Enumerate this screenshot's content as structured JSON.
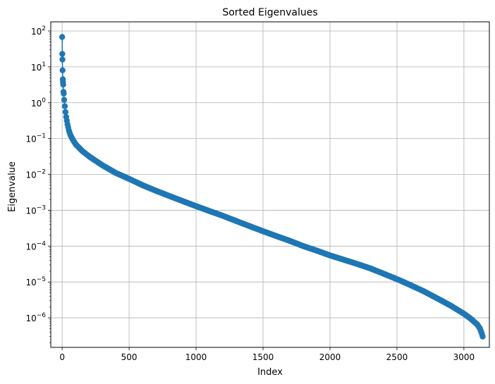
{
  "chart_data": {
    "type": "scatter",
    "title": "Sorted Eigenvalues",
    "xlabel": "Index",
    "ylabel": "Eigenvalue",
    "xlim": [
      -85,
      3190
    ],
    "ylim": [
      1.5e-07,
      180
    ],
    "yscale": "log",
    "grid": true,
    "xticks": [
      0,
      500,
      1000,
      1500,
      2000,
      2500,
      3000
    ],
    "yticks": [
      {
        "value": 1e-06,
        "base": "10",
        "exp": "−6"
      },
      {
        "value": 1e-05,
        "base": "10",
        "exp": "−5"
      },
      {
        "value": 0.0001,
        "base": "10",
        "exp": "−4"
      },
      {
        "value": 0.001,
        "base": "10",
        "exp": "−3"
      },
      {
        "value": 0.01,
        "base": "10",
        "exp": "−2"
      },
      {
        "value": 0.1,
        "base": "10",
        "exp": "−1"
      },
      {
        "value": 1,
        "base": "10",
        "exp": "0"
      },
      {
        "value": 10,
        "base": "10",
        "exp": "1"
      },
      {
        "value": 100,
        "base": "10",
        "exp": "2"
      }
    ],
    "series": [
      {
        "color": "#1f77b4",
        "marker": "circle",
        "line": true,
        "points": [
          [
            0,
            68
          ],
          [
            1,
            23
          ],
          [
            2,
            16
          ],
          [
            3,
            8
          ],
          [
            5,
            4.5
          ],
          [
            6,
            3.8
          ],
          [
            8,
            3.2
          ],
          [
            10,
            2.0
          ],
          [
            12,
            1.8
          ],
          [
            15,
            1.2
          ],
          [
            20,
            0.8
          ],
          [
            25,
            0.55
          ],
          [
            30,
            0.4
          ],
          [
            40,
            0.25
          ],
          [
            50,
            0.17
          ],
          [
            60,
            0.13
          ],
          [
            75,
            0.1
          ],
          [
            100,
            0.07
          ],
          [
            150,
            0.045
          ],
          [
            200,
            0.032
          ],
          [
            250,
            0.024
          ],
          [
            300,
            0.018
          ],
          [
            400,
            0.011
          ],
          [
            500,
            0.0075
          ],
          [
            600,
            0.005
          ],
          [
            700,
            0.0035
          ],
          [
            800,
            0.0025
          ],
          [
            900,
            0.0018
          ],
          [
            1000,
            0.0013
          ],
          [
            1100,
            0.00095
          ],
          [
            1200,
            0.0007
          ],
          [
            1300,
            0.0005
          ],
          [
            1400,
            0.00036
          ],
          [
            1500,
            0.00026
          ],
          [
            1600,
            0.00019
          ],
          [
            1700,
            0.00014
          ],
          [
            1800,
            0.0001
          ],
          [
            1900,
            7.5e-05
          ],
          [
            2000,
            5.5e-05
          ],
          [
            2100,
            4.2e-05
          ],
          [
            2200,
            3.2e-05
          ],
          [
            2300,
            2.4e-05
          ],
          [
            2400,
            1.7e-05
          ],
          [
            2500,
            1.2e-05
          ],
          [
            2600,
            8.2e-06
          ],
          [
            2700,
            5.5e-06
          ],
          [
            2800,
            3.5e-06
          ],
          [
            2900,
            2.2e-06
          ],
          [
            3000,
            1.3e-06
          ],
          [
            3050,
            9.5e-07
          ],
          [
            3100,
            6.5e-07
          ],
          [
            3120,
            5e-07
          ],
          [
            3135,
            3.5e-07
          ],
          [
            3140,
            3e-07
          ]
        ]
      }
    ]
  }
}
